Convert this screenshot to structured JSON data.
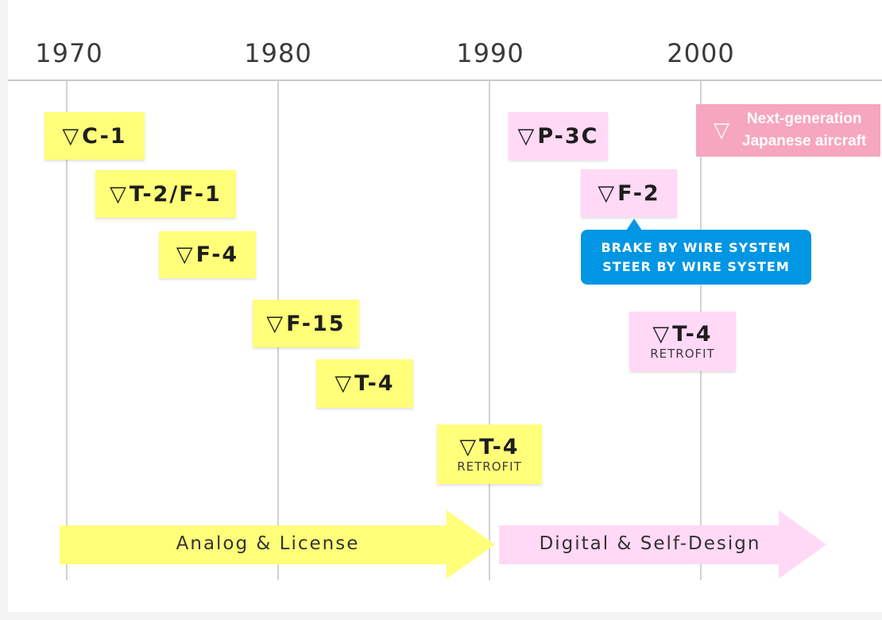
{
  "timeline": {
    "years": [
      "1970",
      "1980",
      "1990",
      "2000"
    ],
    "marker_glyph": "▽"
  },
  "aircraft": [
    {
      "label": "C-1",
      "sub": "",
      "era": "analog"
    },
    {
      "label": "T-2/F-1",
      "sub": "",
      "era": "analog"
    },
    {
      "label": "F-4",
      "sub": "",
      "era": "analog"
    },
    {
      "label": "F-15",
      "sub": "",
      "era": "analog"
    },
    {
      "label": "T-4",
      "sub": "",
      "era": "analog"
    },
    {
      "label": "T-4",
      "sub": "RETROFIT",
      "era": "analog"
    },
    {
      "label": "P-3C",
      "sub": "",
      "era": "digital"
    },
    {
      "label": "F-2",
      "sub": "",
      "era": "digital"
    },
    {
      "label": "T-4",
      "sub": "RETROFIT",
      "era": "digital"
    }
  ],
  "next_generation": {
    "marker_glyph": "▽",
    "line1": "Next-generation",
    "line2": "Japanese aircraft"
  },
  "callout": {
    "line1": "BRAKE BY WIRE SYSTEM",
    "line2": "STEER BY WIRE SYSTEM"
  },
  "eras": {
    "analog": {
      "label": "Analog & License",
      "color": "#ffff7a"
    },
    "digital": {
      "label": "Digital & Self-Design",
      "color": "#ffd9f6"
    }
  },
  "colors": {
    "analog_box": "#ffff7a",
    "digital_box": "#ffd9f6",
    "next_gen": "#f6a6be",
    "callout": "#0096e3"
  }
}
